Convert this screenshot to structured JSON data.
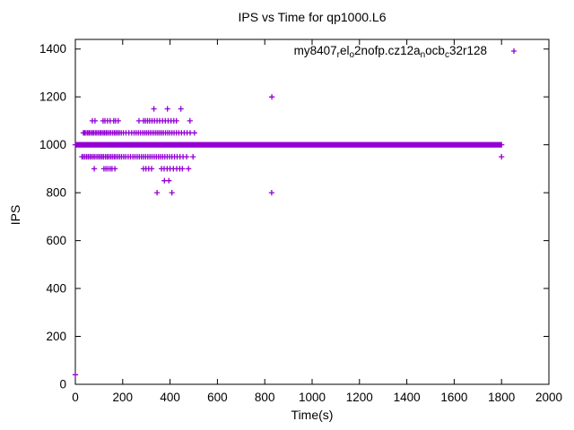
{
  "chart_data": {
    "type": "scatter",
    "title": "IPS vs Time for qp1000.L6",
    "xlabel": "Time(s)",
    "ylabel": "IPS",
    "xlim": [
      0,
      2000
    ],
    "ylim": [
      0,
      1440
    ],
    "xticks": [
      0,
      200,
      400,
      600,
      800,
      1000,
      1200,
      1400,
      1600,
      1800,
      2000
    ],
    "yticks": [
      0,
      200,
      400,
      600,
      800,
      1000,
      1200,
      1400
    ],
    "grid": false,
    "background_color": "#ffffff",
    "axis_color": "#000000",
    "legend": {
      "label": "my8407_rel_o2nofp.cz12a_nocb_c32r128",
      "segments": [
        {
          "text": "my8407"
        },
        {
          "text": "r",
          "sub": true
        },
        {
          "text": "el"
        },
        {
          "text": "o",
          "sub": true
        },
        {
          "text": "2nofp.cz12a"
        },
        {
          "text": "n",
          "sub": true
        },
        {
          "text": "ocb"
        },
        {
          "text": "c",
          "sub": true
        },
        {
          "text": "32r128"
        }
      ],
      "position": "top-right-inside",
      "marker": "plus"
    },
    "series": [
      {
        "name": "my8407_rel_o2nofp.cz12a_nocb_c32r128",
        "color": "#9400d3",
        "marker": "plus",
        "band": {
          "ips": 1000,
          "t_start": 0,
          "t_end": 1800,
          "step": 2
        },
        "rows": [
          {
            "ips": 1150,
            "t": [
              332,
              389,
              446
            ]
          },
          {
            "ips": 1100,
            "t": [
              72,
              83,
              117,
              125,
              136,
              147,
              162,
              170,
              181,
              269,
              288,
              296,
              305,
              314,
              324,
              334,
              345,
              356,
              368,
              380,
              392,
              404,
              416,
              427,
              484
            ]
          },
          {
            "ips": 1050,
            "t": [
              34,
              39,
              45,
              52,
              58,
              64,
              71,
              77,
              84,
              90,
              97,
              104,
              110,
              117,
              123,
              130,
              136,
              143,
              150,
              158,
              165,
              172,
              179,
              186,
              194,
              203,
              214,
              226,
              238,
              248,
              257,
              266,
              275,
              284,
              292,
              300,
              308,
              316,
              324,
              332,
              340,
              348,
              356,
              364,
              372,
              381,
              390,
              399,
              408,
              417,
              427,
              437,
              448,
              460,
              472,
              485,
              503
            ]
          },
          {
            "ips": 950,
            "t": [
              28,
              34,
              41,
              48,
              55,
              62,
              69,
              76,
              83,
              91,
              98,
              105,
              112,
              119,
              127,
              134,
              141,
              149,
              156,
              164,
              171,
              179,
              187,
              195,
              204,
              213,
              223,
              233,
              243,
              252,
              261,
              270,
              279,
              288,
              297,
              306,
              315,
              324,
              333,
              342,
              351,
              360,
              369,
              378,
              388,
              398,
              408,
              419,
              430,
              442,
              455,
              470,
              497
            ]
          },
          {
            "ips": 900,
            "t": [
              80,
              121,
              129,
              138,
              147,
              155,
              167,
              288,
              298,
              310,
              322,
              364,
              375,
              388,
              400,
              414,
              428,
              441,
              452,
              478
            ]
          },
          {
            "ips": 850,
            "t": [
              376,
              395
            ]
          },
          {
            "ips": 800,
            "t": [
              345,
              408,
              829
            ]
          }
        ],
        "outliers": [
          [
            0,
            40
          ],
          [
            830,
            1200
          ],
          [
            1800,
            950
          ]
        ]
      }
    ]
  }
}
